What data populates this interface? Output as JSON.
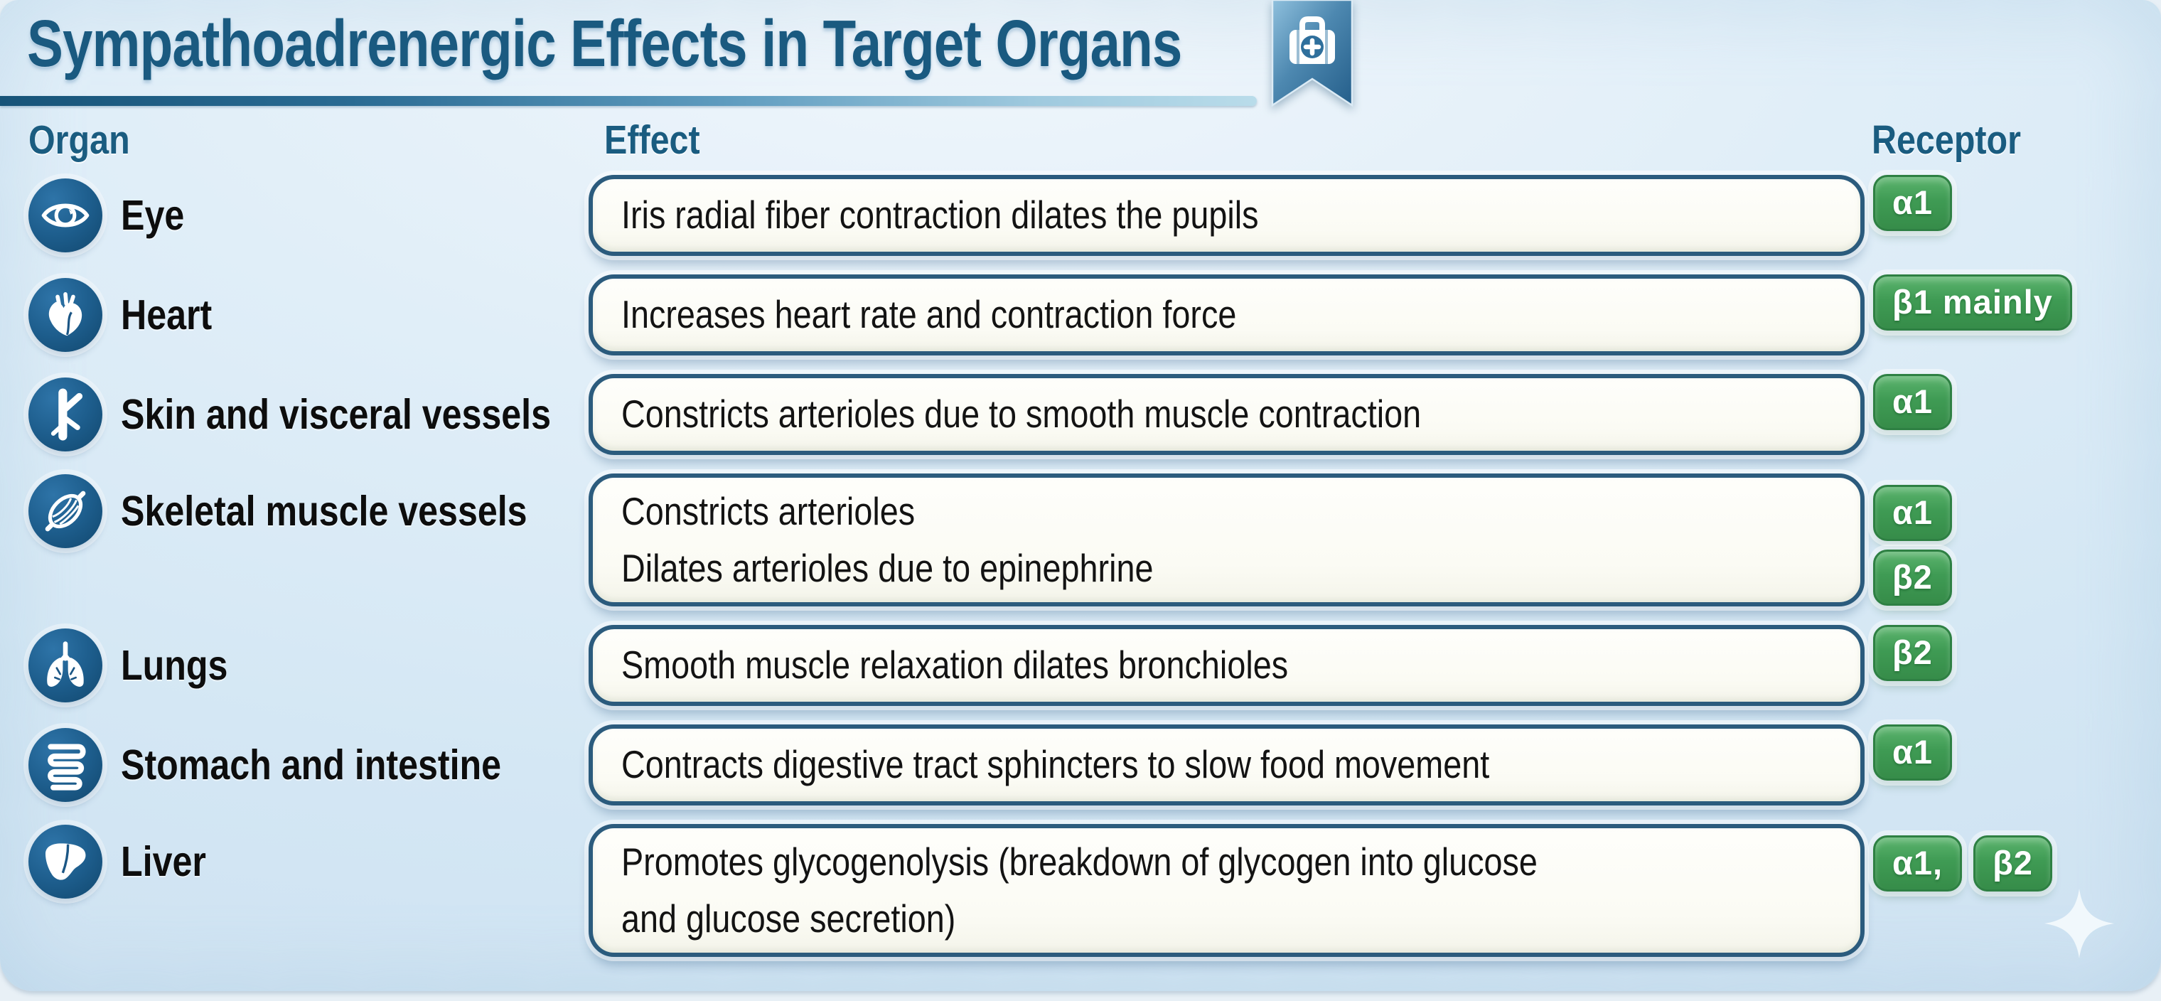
{
  "title": "Sympathoadrenergic Effects in Target Organs",
  "header_icon": "medical-kit-bookmark-icon",
  "columns": {
    "organ": "Organ",
    "effect": "Effect",
    "receptor": "Receptor"
  },
  "colors": {
    "background": "#d7e8f4",
    "title_text": "#1a5a80",
    "header_text": "#1a5c80",
    "organ_text": "#0d0d0d",
    "effect_text": "#131313",
    "effect_box_bg": "#fcfcf6",
    "effect_box_border": "#2b5b7d",
    "icon_circle_blue": "#1d5d8c",
    "badge_green": "#3f9b54",
    "badge_border_green": "#2e8043",
    "badge_text": "#ffffff",
    "divider_gradient_start": "#175479",
    "divider_gradient_end": "#b9dcea",
    "ribbon_blue": "#2f6f9c"
  },
  "rows": [
    {
      "organ": "Eye",
      "icon": "eye-icon",
      "effect_lines": [
        "Iris radial fiber contraction dilates the pupils"
      ],
      "receptors": [
        "α1"
      ],
      "receptor_layout": "row",
      "tall": false
    },
    {
      "organ": "Heart",
      "icon": "heart-icon",
      "effect_lines": [
        "Increases heart rate and contraction force"
      ],
      "receptors": [
        "β1 mainly"
      ],
      "receptor_layout": "row",
      "tall": false
    },
    {
      "organ": "Skin and visceral vessels",
      "icon": "blood-vessel-icon",
      "effect_lines": [
        "Constricts arterioles due to smooth muscle contraction"
      ],
      "receptors": [
        "α1"
      ],
      "receptor_layout": "row",
      "tall": false
    },
    {
      "organ": "Skeletal muscle vessels",
      "icon": "skeletal-muscle-icon",
      "effect_lines": [
        "Constricts arterioles",
        "Dilates arterioles due to epinephrine"
      ],
      "receptors": [
        "α1",
        "β2"
      ],
      "receptor_layout": "column",
      "tall": true
    },
    {
      "organ": "Lungs",
      "icon": "lungs-icon",
      "effect_lines": [
        "Smooth muscle relaxation dilates bronchioles"
      ],
      "receptors": [
        "β2"
      ],
      "receptor_layout": "row",
      "tall": false
    },
    {
      "organ": "Stomach and intestine",
      "icon": "stomach-intestine-icon",
      "effect_lines": [
        "Contracts digestive tract sphincters to slow food movement"
      ],
      "receptors": [
        "α1"
      ],
      "receptor_layout": "row",
      "tall": false
    },
    {
      "organ": "Liver",
      "icon": "liver-icon",
      "effect_lines": [
        "Promotes glycogenolysis (breakdown of glycogen into glucose",
        "and glucose secretion)"
      ],
      "receptors": [
        "α1,",
        "β2"
      ],
      "receptor_layout": "row",
      "tall": true
    }
  ],
  "decorations": {
    "sparkle": "sparkle-icon"
  }
}
